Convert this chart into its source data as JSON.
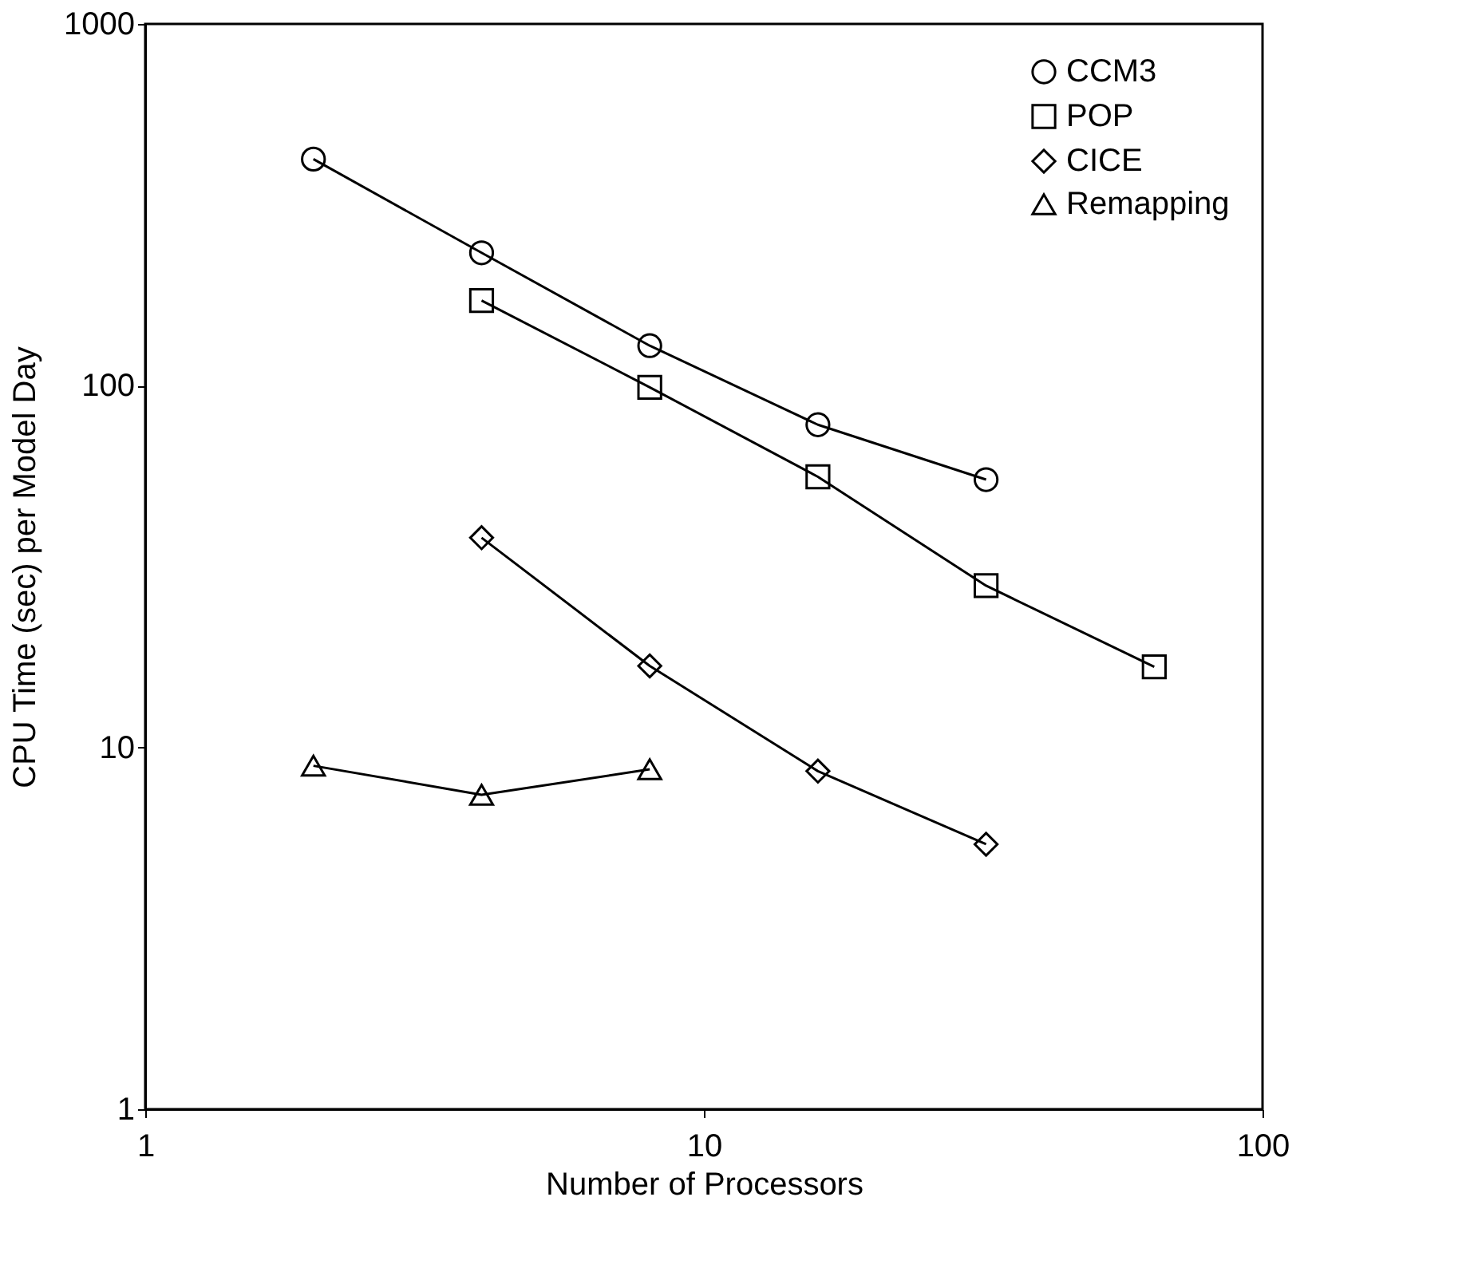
{
  "chart_data": {
    "type": "line",
    "xlabel": "Number of Processors",
    "ylabel": "CPU Time (sec) per Model Day",
    "log": "xy",
    "xlim": [
      1,
      100
    ],
    "ylim": [
      1,
      1000
    ],
    "xticks": [
      1,
      10,
      100
    ],
    "yticks": [
      1,
      10,
      100,
      1000
    ],
    "grid": false,
    "legend": "top right",
    "line_style": "solid",
    "series": [
      {
        "name": "CCM3",
        "color": "#000000",
        "marker": "circle",
        "x": [
          2,
          4,
          8,
          16,
          32
        ],
        "values": [
          423,
          233,
          129,
          78,
          55
        ]
      },
      {
        "name": "POP",
        "color": "#000000",
        "marker": "square",
        "x": [
          4,
          8,
          16,
          32,
          64
        ],
        "values": [
          172,
          99,
          56,
          28,
          16.7
        ]
      },
      {
        "name": "CICE",
        "color": "#000000",
        "marker": "diamond",
        "x": [
          4,
          8,
          16,
          32
        ],
        "values": [
          38,
          16.8,
          8.6,
          5.4
        ]
      },
      {
        "name": "Remapping",
        "color": "#000000",
        "marker": "triangle",
        "x": [
          2,
          4,
          8
        ],
        "values": [
          8.9,
          7.4,
          8.7
        ]
      }
    ]
  }
}
